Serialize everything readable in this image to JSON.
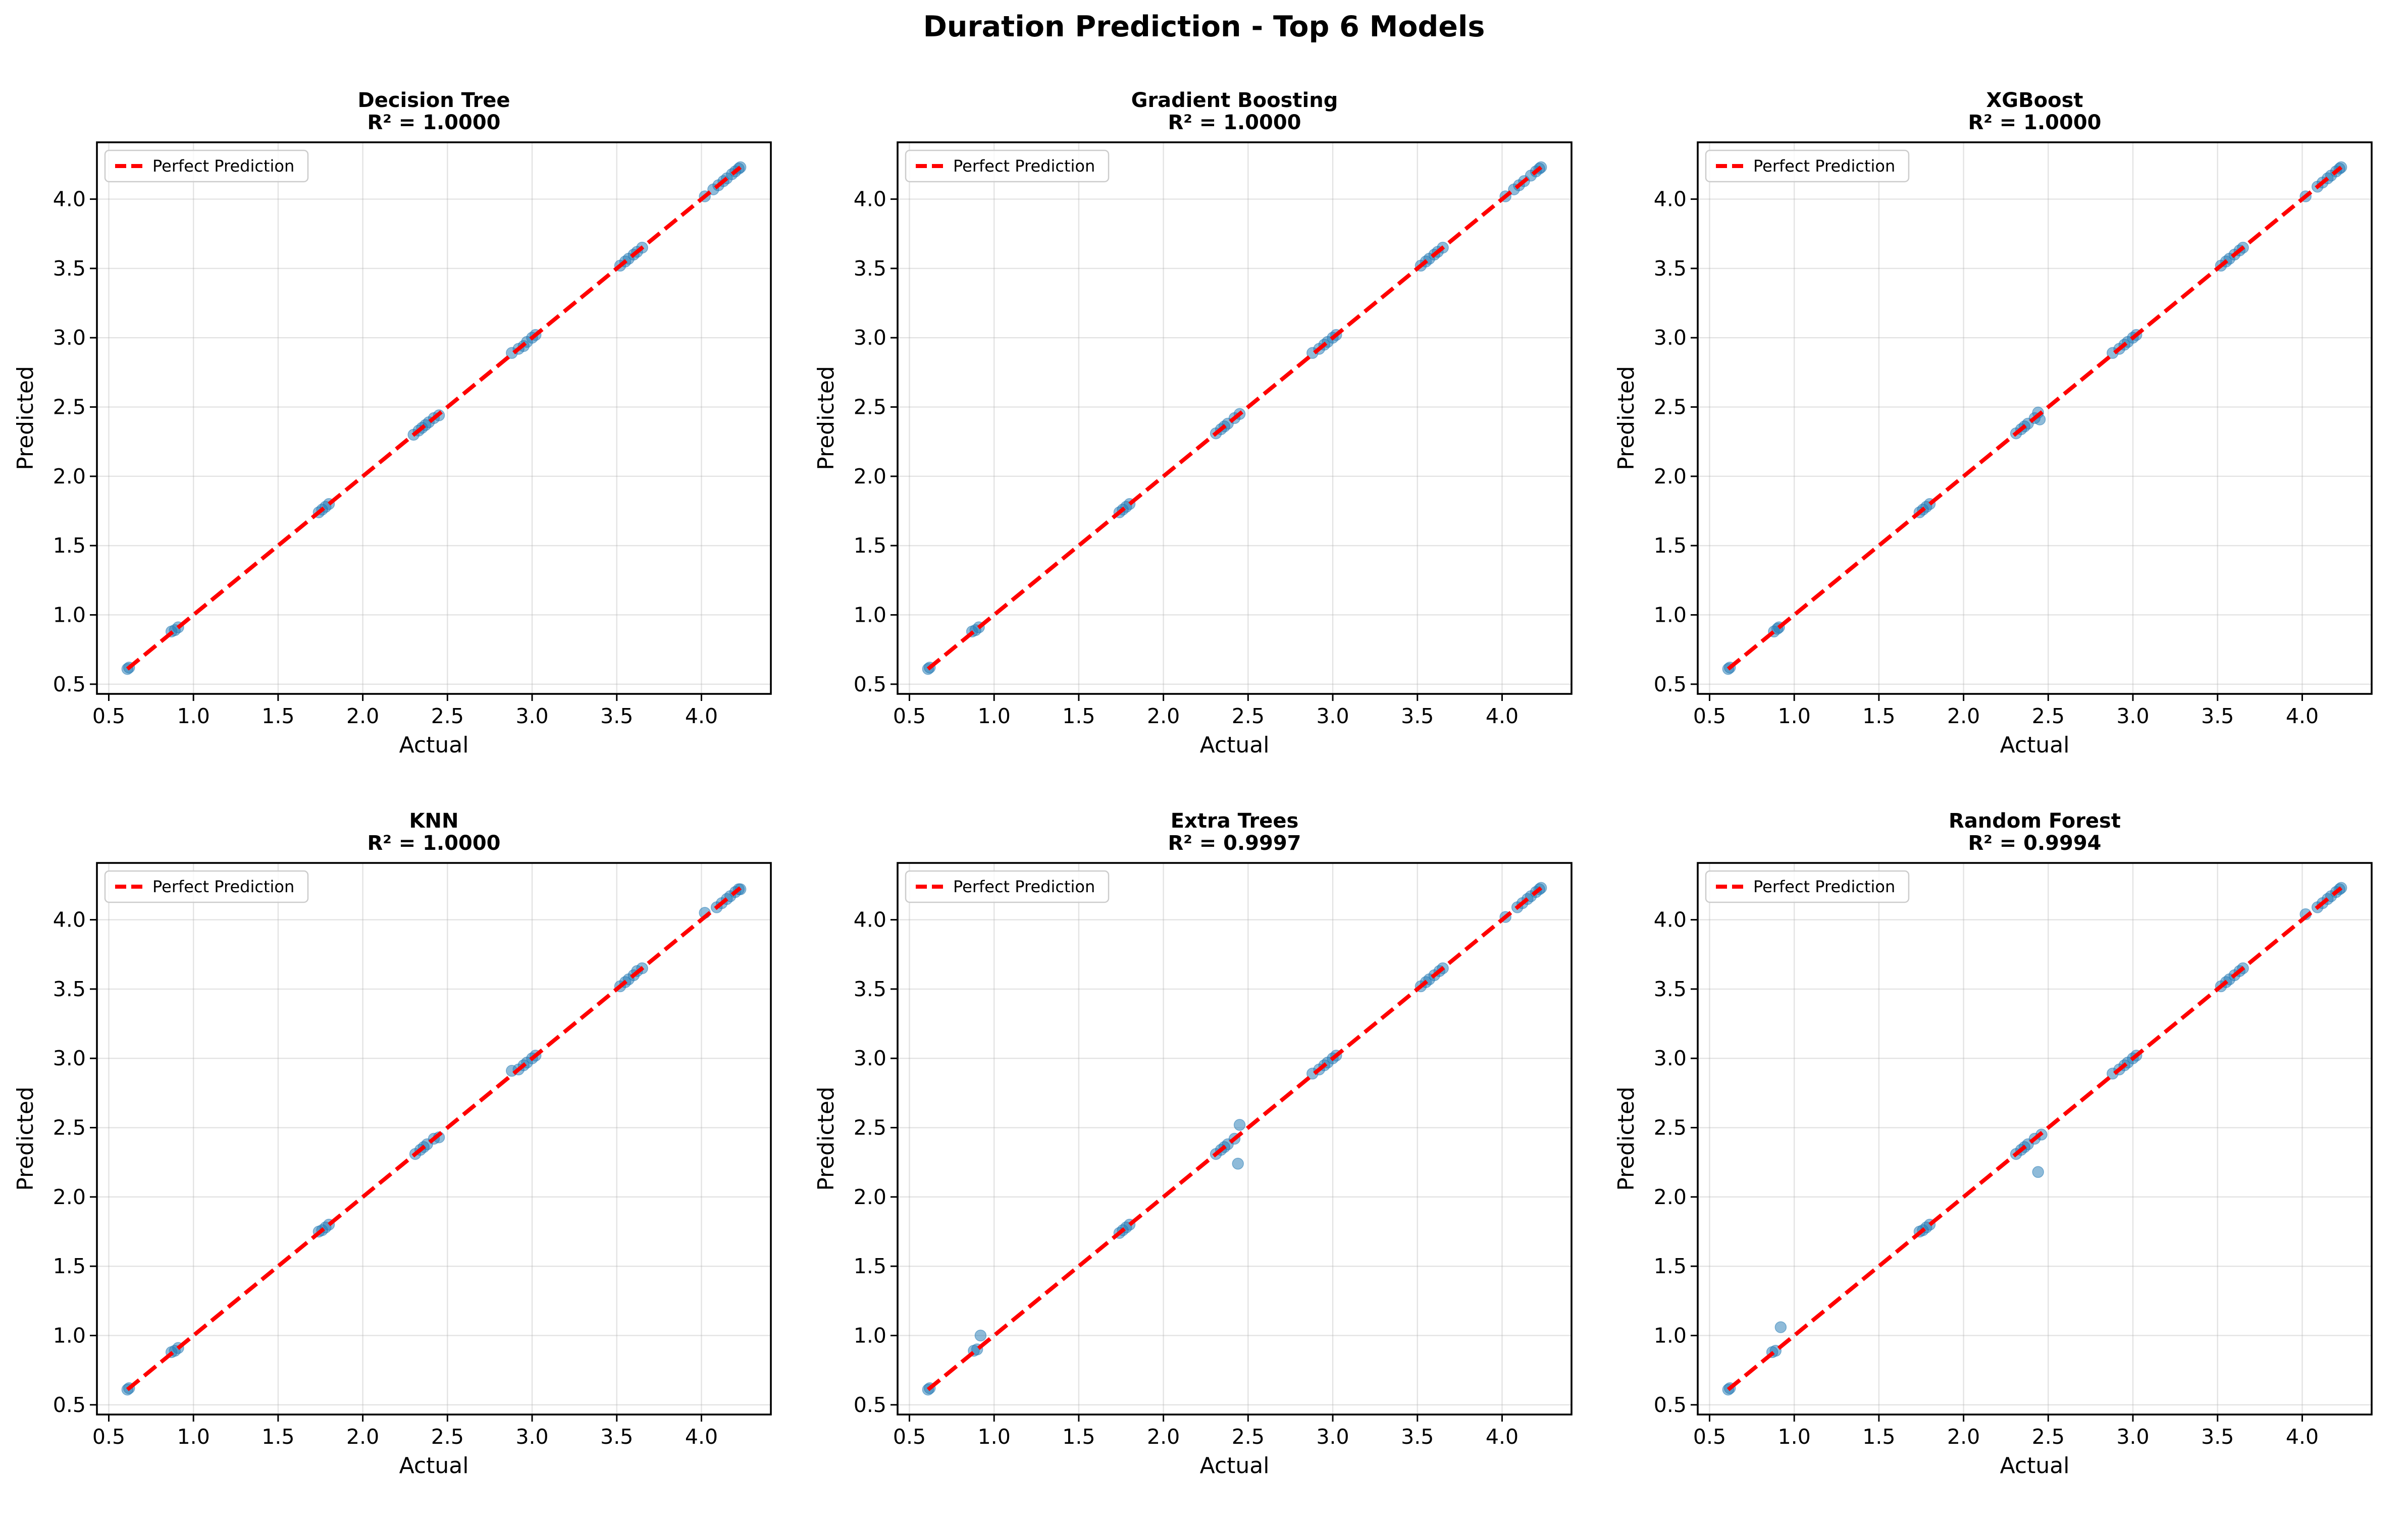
{
  "figure": {
    "title": "Duration Prediction - Top 6 Models"
  },
  "chart_data": [
    {
      "type": "scatter",
      "title": "Decision Tree",
      "subtitle": "R² = 1.0000",
      "xlabel": "Actual",
      "ylabel": "Predicted",
      "xlim": [
        0.43,
        4.41
      ],
      "ylim": [
        0.43,
        4.41
      ],
      "xticks": [
        0.5,
        1.0,
        1.5,
        2.0,
        2.5,
        3.0,
        3.5,
        4.0
      ],
      "yticks": [
        0.5,
        1.0,
        1.5,
        2.0,
        2.5,
        3.0,
        3.5,
        4.0
      ],
      "tick_labels": [
        "0.5",
        "1.0",
        "1.5",
        "2.0",
        "2.5",
        "3.0",
        "3.5",
        "4.0"
      ],
      "grid": true,
      "legend": {
        "position": "top-left",
        "entries": [
          "Perfect Prediction"
        ]
      },
      "reference_line": {
        "name": "Perfect Prediction",
        "color": "#ff0000",
        "style": "dashed",
        "from": [
          0.61,
          0.61
        ],
        "to": [
          4.23,
          4.23
        ]
      },
      "point_color": "#1f77b4",
      "points": [
        [
          0.61,
          0.61
        ],
        [
          0.62,
          0.62
        ],
        [
          0.87,
          0.88
        ],
        [
          0.89,
          0.89
        ],
        [
          0.91,
          0.91
        ],
        [
          1.74,
          1.74
        ],
        [
          1.76,
          1.76
        ],
        [
          1.78,
          1.78
        ],
        [
          1.8,
          1.8
        ],
        [
          2.3,
          2.3
        ],
        [
          2.33,
          2.33
        ],
        [
          2.35,
          2.35
        ],
        [
          2.37,
          2.37
        ],
        [
          2.39,
          2.39
        ],
        [
          2.42,
          2.42
        ],
        [
          2.45,
          2.44
        ],
        [
          2.88,
          2.89
        ],
        [
          2.92,
          2.92
        ],
        [
          2.95,
          2.94
        ],
        [
          2.97,
          2.97
        ],
        [
          3.0,
          3.0
        ],
        [
          3.02,
          3.02
        ],
        [
          3.52,
          3.52
        ],
        [
          3.55,
          3.55
        ],
        [
          3.57,
          3.57
        ],
        [
          3.6,
          3.6
        ],
        [
          3.62,
          3.62
        ],
        [
          3.65,
          3.65
        ],
        [
          4.02,
          4.02
        ],
        [
          4.07,
          4.07
        ],
        [
          4.1,
          4.1
        ],
        [
          4.13,
          4.13
        ],
        [
          4.15,
          4.15
        ],
        [
          4.18,
          4.18
        ],
        [
          4.2,
          4.2
        ],
        [
          4.22,
          4.22
        ],
        [
          4.23,
          4.23
        ]
      ]
    },
    {
      "type": "scatter",
      "title": "Gradient Boosting",
      "subtitle": "R² = 1.0000",
      "xlabel": "Actual",
      "ylabel": "Predicted",
      "xlim": [
        0.43,
        4.41
      ],
      "ylim": [
        0.43,
        4.41
      ],
      "xticks": [
        0.5,
        1.0,
        1.5,
        2.0,
        2.5,
        3.0,
        3.5,
        4.0
      ],
      "yticks": [
        0.5,
        1.0,
        1.5,
        2.0,
        2.5,
        3.0,
        3.5,
        4.0
      ],
      "tick_labels": [
        "0.5",
        "1.0",
        "1.5",
        "2.0",
        "2.5",
        "3.0",
        "3.5",
        "4.0"
      ],
      "grid": true,
      "legend": {
        "position": "top-left",
        "entries": [
          "Perfect Prediction"
        ]
      },
      "reference_line": {
        "name": "Perfect Prediction",
        "color": "#ff0000",
        "style": "dashed",
        "from": [
          0.61,
          0.61
        ],
        "to": [
          4.23,
          4.23
        ]
      },
      "point_color": "#1f77b4",
      "points": [
        [
          0.61,
          0.61
        ],
        [
          0.62,
          0.62
        ],
        [
          0.87,
          0.88
        ],
        [
          0.89,
          0.89
        ],
        [
          0.91,
          0.91
        ],
        [
          1.74,
          1.74
        ],
        [
          1.76,
          1.76
        ],
        [
          1.78,
          1.78
        ],
        [
          1.8,
          1.8
        ],
        [
          2.31,
          2.31
        ],
        [
          2.34,
          2.34
        ],
        [
          2.36,
          2.36
        ],
        [
          2.38,
          2.38
        ],
        [
          2.42,
          2.42
        ],
        [
          2.45,
          2.45
        ],
        [
          2.88,
          2.89
        ],
        [
          2.92,
          2.92
        ],
        [
          2.95,
          2.95
        ],
        [
          2.97,
          2.97
        ],
        [
          3.0,
          3.0
        ],
        [
          3.02,
          3.02
        ],
        [
          3.52,
          3.52
        ],
        [
          3.55,
          3.55
        ],
        [
          3.57,
          3.57
        ],
        [
          3.6,
          3.6
        ],
        [
          3.62,
          3.62
        ],
        [
          3.65,
          3.65
        ],
        [
          4.02,
          4.02
        ],
        [
          4.07,
          4.07
        ],
        [
          4.1,
          4.1
        ],
        [
          4.13,
          4.13
        ],
        [
          4.17,
          4.17
        ],
        [
          4.2,
          4.2
        ],
        [
          4.22,
          4.22
        ],
        [
          4.23,
          4.23
        ]
      ]
    },
    {
      "type": "scatter",
      "title": "XGBoost",
      "subtitle": "R² = 1.0000",
      "xlabel": "Actual",
      "ylabel": "Predicted",
      "xlim": [
        0.43,
        4.41
      ],
      "ylim": [
        0.43,
        4.41
      ],
      "xticks": [
        0.5,
        1.0,
        1.5,
        2.0,
        2.5,
        3.0,
        3.5,
        4.0
      ],
      "yticks": [
        0.5,
        1.0,
        1.5,
        2.0,
        2.5,
        3.0,
        3.5,
        4.0
      ],
      "tick_labels": [
        "0.5",
        "1.0",
        "1.5",
        "2.0",
        "2.5",
        "3.0",
        "3.5",
        "4.0"
      ],
      "grid": true,
      "legend": {
        "position": "top-left",
        "entries": [
          "Perfect Prediction"
        ]
      },
      "reference_line": {
        "name": "Perfect Prediction",
        "color": "#ff0000",
        "style": "dashed",
        "from": [
          0.61,
          0.61
        ],
        "to": [
          4.23,
          4.23
        ]
      },
      "point_color": "#1f77b4",
      "points": [
        [
          0.61,
          0.61
        ],
        [
          0.62,
          0.62
        ],
        [
          0.88,
          0.88
        ],
        [
          0.9,
          0.9
        ],
        [
          0.91,
          0.91
        ],
        [
          1.74,
          1.74
        ],
        [
          1.76,
          1.76
        ],
        [
          1.78,
          1.78
        ],
        [
          1.8,
          1.8
        ],
        [
          2.31,
          2.31
        ],
        [
          2.34,
          2.34
        ],
        [
          2.36,
          2.36
        ],
        [
          2.38,
          2.38
        ],
        [
          2.42,
          2.42
        ],
        [
          2.44,
          2.46
        ],
        [
          2.45,
          2.41
        ],
        [
          2.88,
          2.89
        ],
        [
          2.92,
          2.92
        ],
        [
          2.95,
          2.95
        ],
        [
          2.97,
          2.97
        ],
        [
          3.0,
          3.0
        ],
        [
          3.02,
          3.02
        ],
        [
          3.52,
          3.52
        ],
        [
          3.55,
          3.55
        ],
        [
          3.57,
          3.57
        ],
        [
          3.6,
          3.6
        ],
        [
          3.63,
          3.63
        ],
        [
          3.65,
          3.65
        ],
        [
          4.02,
          4.02
        ],
        [
          4.09,
          4.09
        ],
        [
          4.12,
          4.12
        ],
        [
          4.15,
          4.15
        ],
        [
          4.17,
          4.17
        ],
        [
          4.2,
          4.2
        ],
        [
          4.22,
          4.22
        ],
        [
          4.23,
          4.23
        ]
      ]
    },
    {
      "type": "scatter",
      "title": "KNN",
      "subtitle": "R² = 1.0000",
      "xlabel": "Actual",
      "ylabel": "Predicted",
      "xlim": [
        0.43,
        4.41
      ],
      "ylim": [
        0.43,
        4.41
      ],
      "xticks": [
        0.5,
        1.0,
        1.5,
        2.0,
        2.5,
        3.0,
        3.5,
        4.0
      ],
      "yticks": [
        0.5,
        1.0,
        1.5,
        2.0,
        2.5,
        3.0,
        3.5,
        4.0
      ],
      "tick_labels": [
        "0.5",
        "1.0",
        "1.5",
        "2.0",
        "2.5",
        "3.0",
        "3.5",
        "4.0"
      ],
      "grid": true,
      "legend": {
        "position": "top-left",
        "entries": [
          "Perfect Prediction"
        ]
      },
      "reference_line": {
        "name": "Perfect Prediction",
        "color": "#ff0000",
        "style": "dashed",
        "from": [
          0.61,
          0.61
        ],
        "to": [
          4.23,
          4.23
        ]
      },
      "point_color": "#1f77b4",
      "points": [
        [
          0.61,
          0.61
        ],
        [
          0.62,
          0.62
        ],
        [
          0.87,
          0.88
        ],
        [
          0.89,
          0.89
        ],
        [
          0.91,
          0.91
        ],
        [
          1.74,
          1.75
        ],
        [
          1.76,
          1.76
        ],
        [
          1.78,
          1.78
        ],
        [
          1.8,
          1.8
        ],
        [
          2.31,
          2.31
        ],
        [
          2.34,
          2.34
        ],
        [
          2.36,
          2.36
        ],
        [
          2.38,
          2.38
        ],
        [
          2.42,
          2.42
        ],
        [
          2.45,
          2.43
        ],
        [
          2.88,
          2.91
        ],
        [
          2.92,
          2.92
        ],
        [
          2.95,
          2.95
        ],
        [
          2.97,
          2.97
        ],
        [
          3.0,
          3.0
        ],
        [
          3.02,
          3.02
        ],
        [
          3.52,
          3.52
        ],
        [
          3.55,
          3.55
        ],
        [
          3.57,
          3.57
        ],
        [
          3.6,
          3.6
        ],
        [
          3.62,
          3.63
        ],
        [
          3.65,
          3.65
        ],
        [
          4.02,
          4.05
        ],
        [
          4.09,
          4.09
        ],
        [
          4.12,
          4.12
        ],
        [
          4.15,
          4.15
        ],
        [
          4.17,
          4.17
        ],
        [
          4.2,
          4.2
        ],
        [
          4.22,
          4.22
        ],
        [
          4.23,
          4.22
        ]
      ]
    },
    {
      "type": "scatter",
      "title": "Extra Trees",
      "subtitle": "R² = 0.9997",
      "xlabel": "Actual",
      "ylabel": "Predicted",
      "xlim": [
        0.43,
        4.41
      ],
      "ylim": [
        0.43,
        4.41
      ],
      "xticks": [
        0.5,
        1.0,
        1.5,
        2.0,
        2.5,
        3.0,
        3.5,
        4.0
      ],
      "yticks": [
        0.5,
        1.0,
        1.5,
        2.0,
        2.5,
        3.0,
        3.5,
        4.0
      ],
      "tick_labels": [
        "0.5",
        "1.0",
        "1.5",
        "2.0",
        "2.5",
        "3.0",
        "3.5",
        "4.0"
      ],
      "grid": true,
      "legend": {
        "position": "top-left",
        "entries": [
          "Perfect Prediction"
        ]
      },
      "reference_line": {
        "name": "Perfect Prediction",
        "color": "#ff0000",
        "style": "dashed",
        "from": [
          0.61,
          0.61
        ],
        "to": [
          4.23,
          4.23
        ]
      },
      "point_color": "#1f77b4",
      "points": [
        [
          0.61,
          0.61
        ],
        [
          0.62,
          0.62
        ],
        [
          0.88,
          0.89
        ],
        [
          0.9,
          0.9
        ],
        [
          0.92,
          1.0
        ],
        [
          1.74,
          1.74
        ],
        [
          1.76,
          1.76
        ],
        [
          1.78,
          1.78
        ],
        [
          1.8,
          1.8
        ],
        [
          2.31,
          2.31
        ],
        [
          2.34,
          2.34
        ],
        [
          2.36,
          2.36
        ],
        [
          2.38,
          2.38
        ],
        [
          2.42,
          2.42
        ],
        [
          2.45,
          2.52
        ],
        [
          2.44,
          2.24
        ],
        [
          2.88,
          2.89
        ],
        [
          2.92,
          2.92
        ],
        [
          2.95,
          2.95
        ],
        [
          2.97,
          2.97
        ],
        [
          3.0,
          3.0
        ],
        [
          3.02,
          3.02
        ],
        [
          3.52,
          3.52
        ],
        [
          3.55,
          3.55
        ],
        [
          3.57,
          3.57
        ],
        [
          3.6,
          3.6
        ],
        [
          3.63,
          3.63
        ],
        [
          3.65,
          3.65
        ],
        [
          4.02,
          4.02
        ],
        [
          4.09,
          4.09
        ],
        [
          4.12,
          4.12
        ],
        [
          4.15,
          4.15
        ],
        [
          4.17,
          4.17
        ],
        [
          4.2,
          4.2
        ],
        [
          4.22,
          4.22
        ],
        [
          4.23,
          4.23
        ]
      ]
    },
    {
      "type": "scatter",
      "title": "Random Forest",
      "subtitle": "R² = 0.9994",
      "xlabel": "Actual",
      "ylabel": "Predicted",
      "xlim": [
        0.43,
        4.41
      ],
      "ylim": [
        0.43,
        4.41
      ],
      "xticks": [
        0.5,
        1.0,
        1.5,
        2.0,
        2.5,
        3.0,
        3.5,
        4.0
      ],
      "yticks": [
        0.5,
        1.0,
        1.5,
        2.0,
        2.5,
        3.0,
        3.5,
        4.0
      ],
      "tick_labels": [
        "0.5",
        "1.0",
        "1.5",
        "2.0",
        "2.5",
        "3.0",
        "3.5",
        "4.0"
      ],
      "grid": true,
      "legend": {
        "position": "top-left",
        "entries": [
          "Perfect Prediction"
        ]
      },
      "reference_line": {
        "name": "Perfect Prediction",
        "color": "#ff0000",
        "style": "dashed",
        "from": [
          0.61,
          0.61
        ],
        "to": [
          4.23,
          4.23
        ]
      },
      "point_color": "#1f77b4",
      "points": [
        [
          0.61,
          0.61
        ],
        [
          0.62,
          0.62
        ],
        [
          0.87,
          0.88
        ],
        [
          0.89,
          0.89
        ],
        [
          0.92,
          1.06
        ],
        [
          1.74,
          1.75
        ],
        [
          1.76,
          1.76
        ],
        [
          1.78,
          1.78
        ],
        [
          1.8,
          1.8
        ],
        [
          2.31,
          2.31
        ],
        [
          2.34,
          2.34
        ],
        [
          2.36,
          2.36
        ],
        [
          2.38,
          2.38
        ],
        [
          2.42,
          2.42
        ],
        [
          2.46,
          2.45
        ],
        [
          2.44,
          2.18
        ],
        [
          2.88,
          2.89
        ],
        [
          2.92,
          2.92
        ],
        [
          2.95,
          2.95
        ],
        [
          2.97,
          2.97
        ],
        [
          3.0,
          3.0
        ],
        [
          3.02,
          3.02
        ],
        [
          3.52,
          3.52
        ],
        [
          3.55,
          3.55
        ],
        [
          3.57,
          3.57
        ],
        [
          3.6,
          3.6
        ],
        [
          3.63,
          3.63
        ],
        [
          3.65,
          3.65
        ],
        [
          4.02,
          4.04
        ],
        [
          4.09,
          4.09
        ],
        [
          4.12,
          4.12
        ],
        [
          4.15,
          4.15
        ],
        [
          4.17,
          4.17
        ],
        [
          4.2,
          4.2
        ],
        [
          4.22,
          4.22
        ],
        [
          4.23,
          4.23
        ]
      ]
    }
  ]
}
